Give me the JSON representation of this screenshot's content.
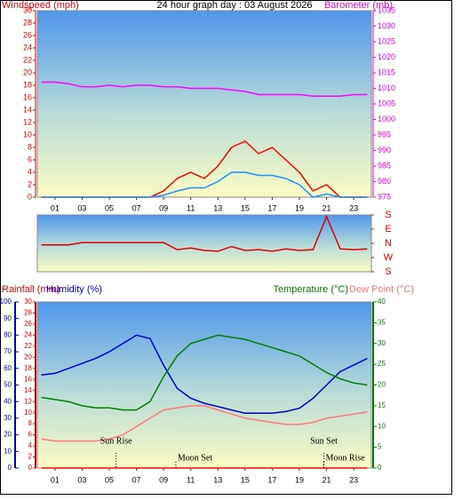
{
  "chart_data": [
    {
      "type": "line",
      "title": "24 hour graph day : 03 August 2026",
      "y_label": "Windspeed (mph)",
      "y2_label": "Barometer (mb)",
      "axis_colors": {
        "y": "#e00000",
        "y2": "#e000e0"
      },
      "x": [
        0,
        1,
        2,
        3,
        4,
        5,
        6,
        7,
        8,
        9,
        10,
        11,
        12,
        13,
        14,
        15,
        16,
        17,
        18,
        19,
        20,
        21,
        22,
        23,
        24
      ],
      "xlim": [
        -0.3,
        24.3
      ],
      "xticks": [
        {
          "value": 1,
          "label": "01"
        },
        {
          "value": 3,
          "label": "03"
        },
        {
          "value": 5,
          "label": "05"
        },
        {
          "value": 7,
          "label": "07"
        },
        {
          "value": 9,
          "label": "09"
        },
        {
          "value": 11,
          "label": "11"
        },
        {
          "value": 13,
          "label": "13"
        },
        {
          "value": 15,
          "label": "15"
        },
        {
          "value": 17,
          "label": "17"
        },
        {
          "value": 19,
          "label": "19"
        },
        {
          "value": 21,
          "label": "21"
        },
        {
          "value": 23,
          "label": "23"
        }
      ],
      "ylim": [
        0,
        30
      ],
      "yticks": [
        0,
        2,
        4,
        6,
        8,
        10,
        12,
        14,
        16,
        18,
        20,
        22,
        24,
        26,
        28,
        30
      ],
      "y2lim": [
        975,
        1035
      ],
      "y2ticks": [
        975,
        980,
        985,
        990,
        995,
        1000,
        1005,
        1010,
        1015,
        1020,
        1025,
        1030,
        1035
      ],
      "series": [
        {
          "color": "#ff0000",
          "values": [
            0,
            0,
            0,
            0,
            0,
            0,
            0,
            0,
            0,
            1,
            3,
            4,
            3,
            5,
            8,
            9,
            7,
            8,
            6,
            4,
            1,
            2,
            0,
            0,
            0
          ]
        },
        {
          "color": "#1e8fff",
          "values": [
            0,
            0,
            0,
            0,
            0,
            0,
            0,
            0,
            0,
            0.3,
            1,
            1.5,
            1.5,
            2.5,
            4,
            4,
            3.5,
            3.5,
            3,
            2,
            0,
            0.5,
            0,
            0,
            0
          ]
        },
        {
          "color": "#ff00ff",
          "axis": "y2",
          "values": [
            1012,
            1012,
            1011.5,
            1010.5,
            1010.5,
            1011,
            1010.5,
            1011,
            1011,
            1010.5,
            1010.5,
            1010,
            1010,
            1010,
            1009.5,
            1009,
            1008,
            1008,
            1008,
            1008,
            1007.5,
            1007.5,
            1007.5,
            1008,
            1008
          ]
        }
      ]
    },
    {
      "type": "line",
      "x": [
        0,
        1,
        2,
        3,
        4,
        5,
        6,
        7,
        8,
        9,
        10,
        11,
        12,
        13,
        14,
        15,
        16,
        17,
        18,
        19,
        20,
        21,
        22,
        23,
        24
      ],
      "xlim": [
        -0.3,
        24.3
      ],
      "ylim": [
        -180,
        180
      ],
      "axis_colors": {
        "y": "#e00000"
      },
      "yticks": [
        {
          "value": 180,
          "label": "S"
        },
        {
          "value": 90,
          "label": "E"
        },
        {
          "value": 0,
          "label": "N"
        },
        {
          "value": -90,
          "label": "W"
        },
        {
          "value": -180,
          "label": "S"
        }
      ],
      "series": [
        {
          "color": "#e00000",
          "values": [
            -10,
            -10,
            -10,
            5,
            5,
            5,
            5,
            5,
            5,
            5,
            -40,
            -30,
            -45,
            -50,
            -20,
            -45,
            -40,
            -50,
            -35,
            -45,
            -40,
            170,
            -35,
            -40,
            -35
          ]
        }
      ]
    },
    {
      "type": "line",
      "y_label": "Rainfall (mm)",
      "y3_label": "Humidity (%)",
      "y2_labels": [
        "Temperature (°C)",
        "Dew Point (°C)"
      ],
      "axis_colors": {
        "y": "#e00000",
        "y3": "#0000c0",
        "y2": "#008000",
        "y2b": "#ff7070"
      },
      "x": [
        0,
        1,
        2,
        3,
        4,
        5,
        6,
        7,
        8,
        9,
        10,
        11,
        12,
        13,
        14,
        15,
        16,
        17,
        18,
        19,
        20,
        21,
        22,
        23,
        24
      ],
      "xlim": [
        -0.3,
        24.3
      ],
      "xticks": [
        {
          "value": 1,
          "label": "01"
        },
        {
          "value": 3,
          "label": "03"
        },
        {
          "value": 5,
          "label": "05"
        },
        {
          "value": 7,
          "label": "07"
        },
        {
          "value": 9,
          "label": "09"
        },
        {
          "value": 11,
          "label": "11"
        },
        {
          "value": 13,
          "label": "13"
        },
        {
          "value": 15,
          "label": "15"
        },
        {
          "value": 17,
          "label": "17"
        },
        {
          "value": 19,
          "label": "19"
        },
        {
          "value": 21,
          "label": "21"
        },
        {
          "value": 23,
          "label": "23"
        }
      ],
      "ylim": [
        0,
        30
      ],
      "yticks": [
        0,
        2,
        4,
        6,
        8,
        10,
        12,
        14,
        16,
        18,
        20,
        22,
        24,
        26,
        28,
        30
      ],
      "y3lim": [
        0,
        100
      ],
      "y3ticks": [
        0,
        10,
        20,
        30,
        40,
        50,
        60,
        70,
        80,
        90,
        100
      ],
      "y2lim": [
        0,
        40
      ],
      "y2ticks": [
        0,
        5,
        10,
        15,
        20,
        25,
        30,
        35,
        40
      ],
      "series": [
        {
          "color": "#ff0000",
          "values": [
            0,
            0,
            0,
            0,
            0,
            0,
            0,
            0,
            0,
            0,
            0,
            0,
            0,
            0,
            0,
            0,
            0,
            0,
            0,
            0,
            0,
            0,
            0,
            0,
            0
          ]
        },
        {
          "color": "#0000cd",
          "axis": "y3",
          "values": [
            56,
            57,
            60,
            63,
            66,
            70,
            75,
            80,
            78,
            62,
            48,
            42,
            39,
            37,
            35,
            33,
            33,
            33,
            34,
            36,
            42,
            50,
            58,
            62,
            66
          ]
        },
        {
          "color": "#008000",
          "axis": "y2",
          "values": [
            17,
            16.5,
            16,
            15,
            14.5,
            14.5,
            14,
            14,
            16,
            22,
            27,
            30,
            31,
            32,
            31.5,
            31,
            30,
            29,
            28,
            27,
            25,
            23,
            21.5,
            20.5,
            20
          ]
        },
        {
          "color": "#ff7a7a",
          "axis": "y2",
          "values": [
            7,
            6.5,
            6.5,
            6.5,
            6.5,
            7,
            8,
            10,
            12,
            14,
            14.5,
            15,
            15,
            14,
            13,
            12,
            11.5,
            11,
            10.5,
            10.5,
            11,
            12,
            12.5,
            13,
            13.5
          ]
        }
      ],
      "annotations": [
        {
          "text": "Sun Rise",
          "x": 5.5
        },
        {
          "text": "Moon Set",
          "x": 9.9
        },
        {
          "text": "Sun Set",
          "x": 20.8
        },
        {
          "text": "Moon Rise",
          "x": 20.8
        }
      ]
    }
  ]
}
